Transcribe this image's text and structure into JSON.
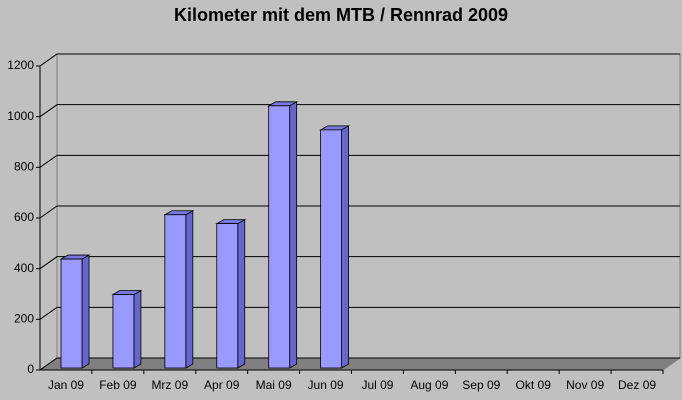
{
  "chart_data": {
    "type": "bar3d",
    "title": "Kilometer mit dem MTB / Rennrad 2009",
    "categories": [
      "Jan 09",
      "Feb 09",
      "Mrz 09",
      "Apr 09",
      "Mai 09",
      "Jun 09",
      "Jul 09",
      "Aug 09",
      "Sep 09",
      "Okt 09",
      "Nov 09",
      "Dez 09"
    ],
    "values": [
      430,
      290,
      605,
      570,
      1035,
      940,
      null,
      null,
      null,
      null,
      null,
      null
    ],
    "color": "#9999ff",
    "ylim": [
      0,
      1200
    ],
    "yticks": [
      0,
      200,
      400,
      600,
      800,
      1000,
      1200
    ],
    "grid": true
  }
}
